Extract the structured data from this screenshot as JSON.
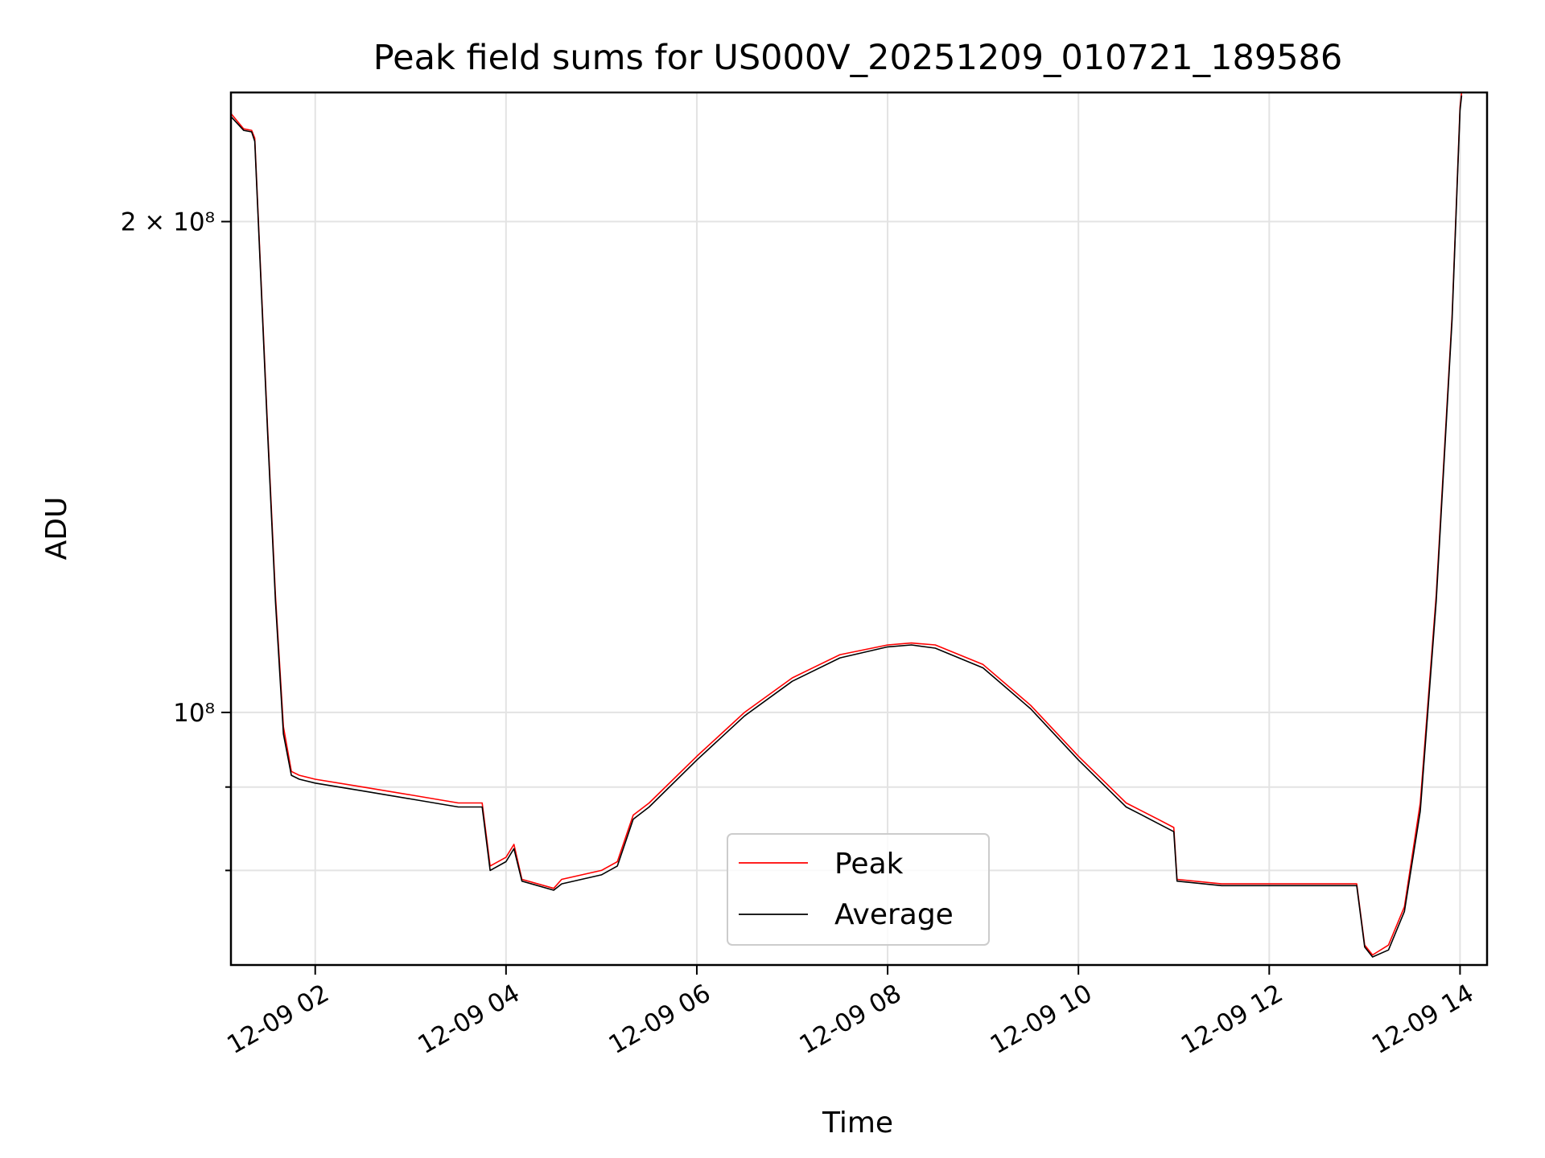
{
  "chart_data": {
    "type": "line",
    "title": "Peak field sums for US000V_20251209_010721_189586",
    "xlabel": "Time",
    "ylabel": "ADU",
    "yscale": "log",
    "xlim": [
      "2025-12-09T01:07",
      "2025-12-09T14:17"
    ],
    "ylim": [
      70000000,
      240000000
    ],
    "x_ticks": [
      {
        "value": "2025-12-09T02:00",
        "label": "12-09 02"
      },
      {
        "value": "2025-12-09T04:00",
        "label": "12-09 04"
      },
      {
        "value": "2025-12-09T06:00",
        "label": "12-09 06"
      },
      {
        "value": "2025-12-09T08:00",
        "label": "12-09 08"
      },
      {
        "value": "2025-12-09T10:00",
        "label": "12-09 10"
      },
      {
        "value": "2025-12-09T12:00",
        "label": "12-09 12"
      },
      {
        "value": "2025-12-09T14:00",
        "label": "12-09 14"
      }
    ],
    "y_ticks": [
      {
        "value": 100000000,
        "label": "10⁸",
        "major": true
      },
      {
        "value": 200000000,
        "label": "2 × 10⁸",
        "major": true
      },
      {
        "value": 80000000,
        "label": "",
        "major": false
      },
      {
        "value": 90000000,
        "label": "",
        "major": false
      }
    ],
    "grid": true,
    "legend_position": "lower-center",
    "series": [
      {
        "name": "Peak",
        "color": "#ff0000",
        "x": [
          "2025-12-09T01:07",
          "2025-12-09T01:15",
          "2025-12-09T01:20",
          "2025-12-09T01:22",
          "2025-12-09T01:30",
          "2025-12-09T01:35",
          "2025-12-09T01:40",
          "2025-12-09T01:45",
          "2025-12-09T01:50",
          "2025-12-09T02:00",
          "2025-12-09T02:30",
          "2025-12-09T03:00",
          "2025-12-09T03:30",
          "2025-12-09T03:45",
          "2025-12-09T03:50",
          "2025-12-09T04:00",
          "2025-12-09T04:05",
          "2025-12-09T04:10",
          "2025-12-09T04:30",
          "2025-12-09T04:35",
          "2025-12-09T05:00",
          "2025-12-09T05:10",
          "2025-12-09T05:20",
          "2025-12-09T05:30",
          "2025-12-09T06:00",
          "2025-12-09T06:30",
          "2025-12-09T07:00",
          "2025-12-09T07:30",
          "2025-12-09T08:00",
          "2025-12-09T08:15",
          "2025-12-09T08:30",
          "2025-12-09T09:00",
          "2025-12-09T09:30",
          "2025-12-09T10:00",
          "2025-12-09T10:30",
          "2025-12-09T10:40",
          "2025-12-09T10:50",
          "2025-12-09T11:00",
          "2025-12-09T11:02",
          "2025-12-09T11:30",
          "2025-12-09T12:00",
          "2025-12-09T12:30",
          "2025-12-09T12:55",
          "2025-12-09T13:00",
          "2025-12-09T13:05",
          "2025-12-09T13:15",
          "2025-12-09T13:25",
          "2025-12-09T13:35",
          "2025-12-09T13:45",
          "2025-12-09T13:55",
          "2025-12-09T14:00",
          "2025-12-09T14:01"
        ],
        "values": [
          233000000,
          228000000,
          227500000,
          225000000,
          150000000,
          118000000,
          98000000,
          92000000,
          91500000,
          91000000,
          90000000,
          89000000,
          88000000,
          88000000,
          80500000,
          81500000,
          83000000,
          79000000,
          78000000,
          79000000,
          80000000,
          81000000,
          86500000,
          88000000,
          94000000,
          100000000,
          105000000,
          108500000,
          110000000,
          110300000,
          110000000,
          107000000,
          101000000,
          94000000,
          88000000,
          87000000,
          86000000,
          85000000,
          79000000,
          78500000,
          78500000,
          78500000,
          78500000,
          72000000,
          71000000,
          72000000,
          76000000,
          88000000,
          118000000,
          175000000,
          235000000,
          240000000
        ]
      },
      {
        "name": "Average",
        "color": "#000000",
        "x": [
          "2025-12-09T01:07",
          "2025-12-09T01:15",
          "2025-12-09T01:20",
          "2025-12-09T01:22",
          "2025-12-09T01:30",
          "2025-12-09T01:35",
          "2025-12-09T01:40",
          "2025-12-09T01:45",
          "2025-12-09T01:50",
          "2025-12-09T02:00",
          "2025-12-09T02:30",
          "2025-12-09T03:00",
          "2025-12-09T03:30",
          "2025-12-09T03:45",
          "2025-12-09T03:50",
          "2025-12-09T04:00",
          "2025-12-09T04:05",
          "2025-12-09T04:10",
          "2025-12-09T04:30",
          "2025-12-09T04:35",
          "2025-12-09T05:00",
          "2025-12-09T05:10",
          "2025-12-09T05:20",
          "2025-12-09T05:30",
          "2025-12-09T06:00",
          "2025-12-09T06:30",
          "2025-12-09T07:00",
          "2025-12-09T07:30",
          "2025-12-09T08:00",
          "2025-12-09T08:15",
          "2025-12-09T08:30",
          "2025-12-09T09:00",
          "2025-12-09T09:30",
          "2025-12-09T10:00",
          "2025-12-09T10:30",
          "2025-12-09T10:40",
          "2025-12-09T10:50",
          "2025-12-09T11:00",
          "2025-12-09T11:02",
          "2025-12-09T11:30",
          "2025-12-09T12:00",
          "2025-12-09T12:30",
          "2025-12-09T12:55",
          "2025-12-09T13:00",
          "2025-12-09T13:05",
          "2025-12-09T13:15",
          "2025-12-09T13:25",
          "2025-12-09T13:35",
          "2025-12-09T13:45",
          "2025-12-09T13:55",
          "2025-12-09T14:00",
          "2025-12-09T14:01"
        ],
        "values": [
          232000000,
          227500000,
          227000000,
          224000000,
          149000000,
          117000000,
          97000000,
          91500000,
          91000000,
          90500000,
          89500000,
          88500000,
          87500000,
          87500000,
          80000000,
          81000000,
          82500000,
          78800000,
          77800000,
          78500000,
          79500000,
          80500000,
          86000000,
          87500000,
          93500000,
          99500000,
          104500000,
          108000000,
          109700000,
          110000000,
          109500000,
          106500000,
          100500000,
          93500000,
          87500000,
          86500000,
          85500000,
          84500000,
          78800000,
          78300000,
          78300000,
          78300000,
          78300000,
          71800000,
          70800000,
          71500000,
          75500000,
          87000000,
          117000000,
          174000000,
          234000000,
          239000000
        ]
      }
    ]
  }
}
